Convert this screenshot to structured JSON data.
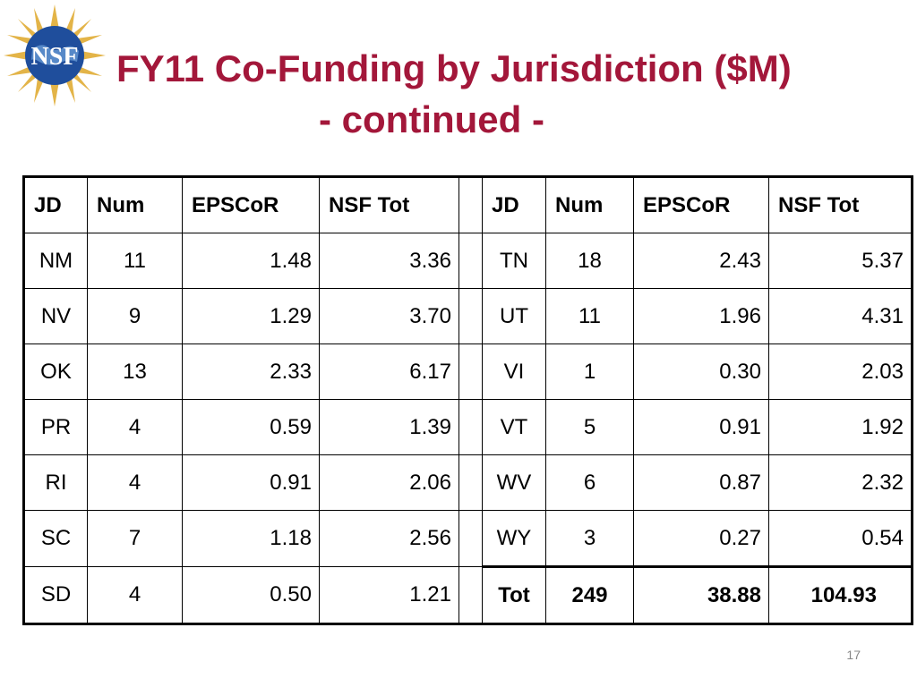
{
  "slide": {
    "title_line1": "FY11 Co-Funding by Jurisdiction ($M)",
    "title_line2": "- continued -",
    "page_number": "17",
    "logo_text": "NSF"
  },
  "colors": {
    "title": "#a3173a",
    "logo_blue": "#1f4e9c",
    "logo_gold": "#e3b448"
  },
  "table": {
    "headers_left": [
      "JD",
      "Num",
      "EPSCoR",
      "NSF Tot"
    ],
    "headers_right": [
      "JD",
      "Num",
      "EPSCoR",
      "NSF Tot"
    ],
    "rows": [
      {
        "left": [
          "NM",
          "11",
          "1.48",
          "3.36"
        ],
        "right": [
          "TN",
          "18",
          "2.43",
          "5.37"
        ]
      },
      {
        "left": [
          "NV",
          "9",
          "1.29",
          "3.70"
        ],
        "right": [
          "UT",
          "11",
          "1.96",
          "4.31"
        ]
      },
      {
        "left": [
          "OK",
          "13",
          "2.33",
          "6.17"
        ],
        "right": [
          "VI",
          "1",
          "0.30",
          "2.03"
        ]
      },
      {
        "left": [
          "PR",
          "4",
          "0.59",
          "1.39"
        ],
        "right": [
          "VT",
          "5",
          "0.91",
          "1.92"
        ]
      },
      {
        "left": [
          "RI",
          "4",
          "0.91",
          "2.06"
        ],
        "right": [
          "WV",
          "6",
          "0.87",
          "2.32"
        ]
      },
      {
        "left": [
          "SC",
          "7",
          "1.18",
          "2.56"
        ],
        "right": [
          "WY",
          "3",
          "0.27",
          "0.54"
        ]
      },
      {
        "left": [
          "SD",
          "4",
          "0.50",
          "1.21"
        ],
        "right": [
          "Tot",
          "249",
          "38.88",
          "104.93"
        ]
      }
    ]
  }
}
